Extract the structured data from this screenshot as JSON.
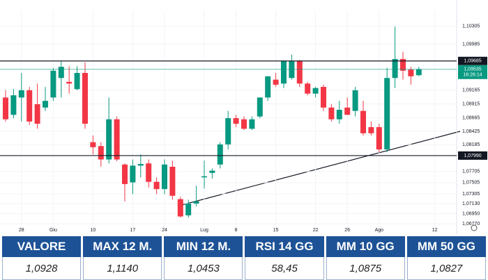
{
  "chart_data": {
    "type": "candlestick",
    "categories": [
      null,
      null,
      "28",
      null,
      null,
      null,
      "Giu",
      null,
      null,
      null,
      null,
      "10",
      null,
      null,
      null,
      null,
      "17",
      null,
      null,
      null,
      "24",
      null,
      null,
      null,
      null,
      "Lug",
      null,
      null,
      null,
      "8",
      null,
      null,
      null,
      null,
      "15",
      null,
      null,
      null,
      null,
      "22",
      null,
      null,
      null,
      "26",
      null,
      null,
      null,
      "Ago",
      null,
      null,
      null,
      null,
      null,
      null,
      "12"
    ],
    "open": [
      1.0903,
      1.0872,
      1.0903,
      1.0916,
      1.0891,
      1.0885,
      1.0903,
      1.0938,
      1.0931,
      1.0918,
      1.0947,
      1.0823,
      1.0816,
      1.0792,
      1.0864,
      1.0783,
      1.0751,
      1.0781,
      1.0785,
      1.0752,
      1.0739,
      1.0779,
      1.0721,
      1.0692,
      1.0713,
      1.076,
      1.0768,
      1.0783,
      1.0819,
      1.0866,
      1.0864,
      1.0847,
      1.0869,
      1.0903,
      1.0935,
      1.0928,
      1.0938,
      1.0968,
      1.0928,
      1.091,
      1.0922,
      1.0885,
      1.0864,
      1.0885,
      1.0879,
      1.0879,
      1.085,
      1.085,
      1.081,
      1.0938,
      1.0972,
      1.0953,
      1.0943,
      null,
      null
    ],
    "high": [
      1.0916,
      1.0918,
      1.0947,
      1.0922,
      1.0928,
      1.0922,
      1.0956,
      1.0968,
      1.0959,
      1.0959,
      1.0966,
      1.0835,
      1.0823,
      1.0903,
      1.0869,
      1.0785,
      1.0792,
      1.0801,
      1.0792,
      1.076,
      1.0792,
      1.079,
      1.0725,
      1.072,
      1.0745,
      1.079,
      1.0776,
      1.0823,
      1.0879,
      1.0872,
      1.0869,
      1.0869,
      1.0903,
      1.0941,
      1.0947,
      1.0968,
      1.098,
      1.097,
      1.0931,
      1.0922,
      1.0926,
      1.0891,
      1.0897,
      1.0903,
      1.0922,
      1.0897,
      1.086,
      1.0856,
      1.0956,
      1.103,
      1.0985,
      1.0958,
      1.0958,
      null,
      null
    ],
    "low": [
      1.086,
      1.0866,
      1.086,
      1.0854,
      1.0847,
      1.0879,
      1.0897,
      1.0903,
      1.091,
      1.0916,
      1.0847,
      1.0801,
      1.0779,
      1.0785,
      1.0789,
      1.0717,
      1.073,
      1.076,
      1.0742,
      1.073,
      1.073,
      1.072,
      1.0688,
      1.0688,
      1.0708,
      1.074,
      1.0758,
      1.0776,
      1.081,
      1.085,
      1.0845,
      1.0845,
      1.0866,
      1.0897,
      1.0922,
      1.092,
      1.0935,
      1.0922,
      1.0907,
      1.0903,
      1.0879,
      1.086,
      1.0856,
      1.0872,
      1.0869,
      1.0835,
      1.0835,
      1.0805,
      1.0805,
      1.092,
      1.0935,
      1.0926,
      1.0941,
      null,
      null
    ],
    "close": [
      1.0864,
      1.0907,
      1.0916,
      1.086,
      1.0856,
      1.0897,
      1.0951,
      1.0958,
      1.0928,
      1.0947,
      1.0856,
      1.0814,
      1.0792,
      1.0864,
      1.0792,
      1.0748,
      1.0781,
      1.0784,
      1.0752,
      1.0739,
      1.0783,
      1.0727,
      1.069,
      1.0713,
      1.0717,
      1.0762,
      1.0772,
      1.0819,
      1.0866,
      1.0856,
      1.0847,
      1.0864,
      1.0903,
      1.0941,
      1.0926,
      1.0968,
      1.0968,
      1.0928,
      1.091,
      1.092,
      1.0885,
      1.0864,
      1.0881,
      1.0872,
      1.0916,
      1.0839,
      1.0839,
      1.081,
      1.0938,
      1.0972,
      1.0951,
      1.0941,
      1.0954,
      null,
      null
    ],
    "up_color": "#089981",
    "down_color": "#f23645",
    "ylim": [
      1.0667,
      1.1059
    ],
    "yticks": [
      {
        "value": 1.10305,
        "label": "1,10305"
      },
      {
        "value": 1.09985,
        "label": "1,09985"
      },
      {
        "value": 1.09165,
        "label": "1,09165"
      },
      {
        "value": 1.08915,
        "label": "1,08915"
      },
      {
        "value": 1.08665,
        "label": "1,08665"
      },
      {
        "value": 1.08425,
        "label": "1,08425"
      },
      {
        "value": 1.08185,
        "label": "1,08185"
      },
      {
        "value": 1.07705,
        "label": "1,07705"
      },
      {
        "value": 1.07505,
        "label": "1,07505"
      },
      {
        "value": 1.07305,
        "label": "1,07305"
      },
      {
        "value": 1.0713,
        "label": "1,07130"
      },
      {
        "value": 1.0695,
        "label": "1,06950"
      },
      {
        "value": 1.0677,
        "label": "1,06770"
      }
    ],
    "grid": true,
    "levels": [
      {
        "value": 1.09685,
        "label": "1,09685",
        "color": "#131722"
      },
      {
        "value": 1.0799,
        "label": "1,07990",
        "color": "#131722"
      },
      {
        "value": 1.09535,
        "label": "1,09535",
        "time": "16:26:14",
        "color": "#089981"
      }
    ]
  },
  "table": {
    "header": [
      "VALORE",
      "MAX 12 M.",
      "MIN 12 M.",
      "RSI 14 GG",
      "MM 10 GG",
      "MM 50 GG"
    ],
    "rows": [
      [
        "1,0928",
        "1,1140",
        "1,0453",
        "58,45",
        "1,0875",
        "1,0827"
      ]
    ]
  }
}
